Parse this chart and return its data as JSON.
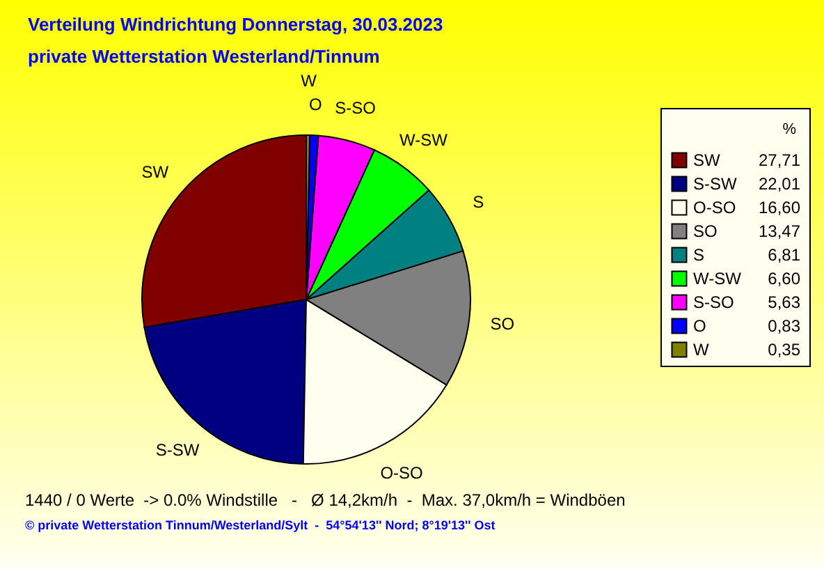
{
  "chart_data": {
    "type": "pie",
    "title": "Verteilung Windrichtung   Donnerstag, 30.03.2023",
    "subtitle": "private Wetterstation Westerland/Tinnum",
    "legend_title": "%",
    "legend": "top right",
    "categories": [
      "SW",
      "S-SW",
      "O-SO",
      "SO",
      "S",
      "W-SW",
      "S-SO",
      "O",
      "W"
    ],
    "values": [
      27.71,
      22.01,
      16.6,
      13.47,
      6.81,
      6.6,
      5.63,
      0.83,
      0.35
    ],
    "value_labels": [
      "27,71",
      "22,01",
      "16,60",
      "13,47",
      "6,81",
      "6,60",
      "5,63",
      "0,83",
      "0,35"
    ],
    "colors": [
      "#800000",
      "#000080",
      "#fffff0",
      "#808080",
      "#008080",
      "#00ff00",
      "#ff00ff",
      "#0000ff",
      "#808000"
    ],
    "annotations": [
      "1440 / 0 Werte  -> 0.0% Windstille   -   Ø 14,2km/h  -  Max. 37,0km/h = Windböen",
      "© private Wetterstation Tinnum/Westerland/Sylt  -  54°54'13'' Nord; 8°19'13'' Ost"
    ]
  }
}
